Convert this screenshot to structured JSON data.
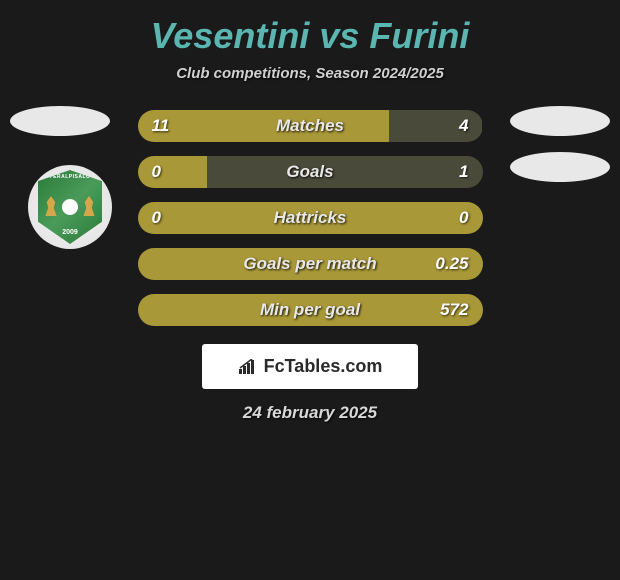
{
  "header": {
    "player_left": "Vesentini",
    "vs": "vs",
    "player_right": "Furini",
    "subtitle": "Club competitions, Season 2024/2025",
    "title_color": "#5bb5b0"
  },
  "club_logo": {
    "name_text": "FERALPISALÒ",
    "year": "2009"
  },
  "stats": [
    {
      "label": "Matches",
      "left_value": "11",
      "right_value": "4",
      "left_pct": 73,
      "right_pct": 27
    },
    {
      "label": "Goals",
      "left_value": "0",
      "right_value": "1",
      "left_pct": 20,
      "right_pct": 80
    },
    {
      "label": "Hattricks",
      "left_value": "0",
      "right_value": "0",
      "left_pct": 100,
      "right_pct": 0
    },
    {
      "label": "Goals per match",
      "left_value": "",
      "right_value": "0.25",
      "left_pct": 100,
      "right_pct": 0
    },
    {
      "label": "Min per goal",
      "left_value": "",
      "right_value": "572",
      "left_pct": 100,
      "right_pct": 0
    }
  ],
  "colors": {
    "bar_left": "#a89838",
    "bar_right": "#4a4a3a",
    "background": "#1a1a1a",
    "badge": "#e8e8e8"
  },
  "brand": {
    "text": "FcTables.com"
  },
  "date": "24 february 2025"
}
